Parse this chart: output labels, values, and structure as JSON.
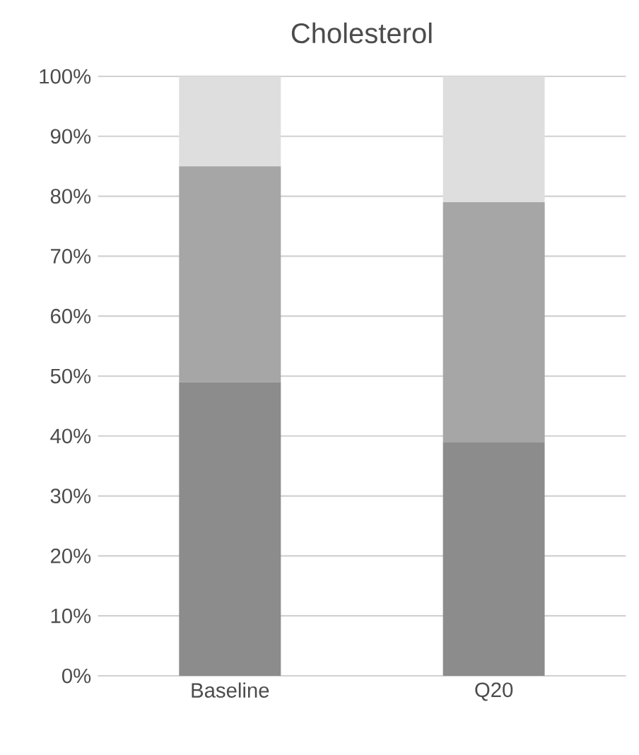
{
  "chart_data": {
    "type": "bar",
    "stacked": true,
    "title": "Cholesterol",
    "categories": [
      "Baseline",
      "Q20"
    ],
    "series": [
      {
        "color": "#8c8c8c",
        "values": [
          49,
          39
        ]
      },
      {
        "color": "#a6a6a6",
        "values": [
          36,
          40
        ]
      },
      {
        "color": "#dedede",
        "values": [
          15,
          21
        ]
      }
    ],
    "ylim": [
      0,
      100
    ],
    "yticks": [
      {
        "value": 0,
        "label": "0%"
      },
      {
        "value": 10,
        "label": "10%"
      },
      {
        "value": 20,
        "label": "20%"
      },
      {
        "value": 30,
        "label": "30%"
      },
      {
        "value": 40,
        "label": "40%"
      },
      {
        "value": 50,
        "label": "50%"
      },
      {
        "value": 60,
        "label": "60%"
      },
      {
        "value": 70,
        "label": "70%"
      },
      {
        "value": 80,
        "label": "80%"
      },
      {
        "value": 90,
        "label": "90%"
      },
      {
        "value": 100,
        "label": "100%"
      }
    ],
    "grid": "y"
  }
}
